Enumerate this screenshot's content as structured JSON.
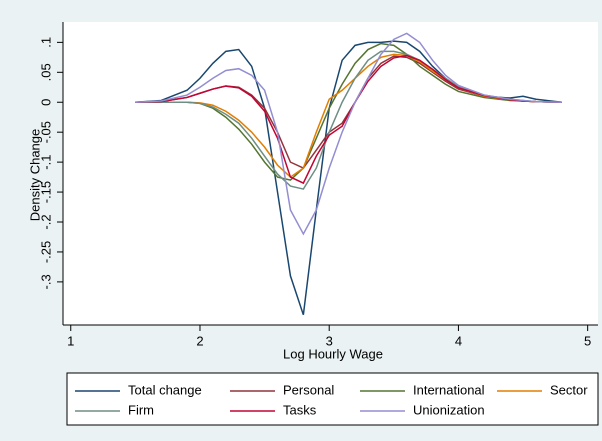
{
  "chart_data": {
    "type": "line",
    "x_label": "Log Hourly Wage",
    "y_label": "Density Change",
    "x": [
      1.5,
      1.7,
      1.9,
      2.0,
      2.1,
      2.2,
      2.3,
      2.4,
      2.5,
      2.6,
      2.7,
      2.8,
      2.9,
      3.0,
      3.1,
      3.2,
      3.3,
      3.4,
      3.5,
      3.6,
      3.7,
      3.8,
      3.9,
      4.0,
      4.2,
      4.4,
      4.5,
      4.6,
      4.8
    ],
    "series": [
      {
        "name": "Total change",
        "color": "#1a476f",
        "values": [
          0,
          0.003,
          0.02,
          0.04,
          0.065,
          0.085,
          0.088,
          0.06,
          -0.01,
          -0.15,
          -0.29,
          -0.355,
          -0.18,
          -0.01,
          0.07,
          0.095,
          0.1,
          0.1,
          0.102,
          0.1,
          0.085,
          0.06,
          0.04,
          0.025,
          0.01,
          0.007,
          0.01,
          0.005,
          0
        ]
      },
      {
        "name": "Personal",
        "color": "#90353b",
        "values": [
          0,
          0.001,
          0.008,
          0.015,
          0.022,
          0.027,
          0.025,
          0.012,
          -0.01,
          -0.05,
          -0.1,
          -0.11,
          -0.08,
          -0.05,
          -0.035,
          0,
          0.04,
          0.065,
          0.077,
          0.075,
          0.065,
          0.05,
          0.035,
          0.022,
          0.01,
          0.004,
          0.002,
          0.001,
          0
        ]
      },
      {
        "name": "International",
        "color": "#55752f",
        "values": [
          0,
          0,
          0,
          -0.002,
          -0.01,
          -0.025,
          -0.045,
          -0.07,
          -0.1,
          -0.125,
          -0.13,
          -0.11,
          -0.06,
          -0.01,
          0.03,
          0.065,
          0.088,
          0.098,
          0.095,
          0.08,
          0.06,
          0.045,
          0.03,
          0.018,
          0.008,
          0.003,
          0.002,
          0.001,
          0
        ]
      },
      {
        "name": "Sector",
        "color": "#e37e00",
        "values": [
          0,
          0,
          0,
          -0.001,
          -0.005,
          -0.015,
          -0.03,
          -0.05,
          -0.075,
          -0.105,
          -0.125,
          -0.11,
          -0.05,
          0.005,
          0.02,
          0.04,
          0.06,
          0.075,
          0.08,
          0.078,
          0.068,
          0.052,
          0.038,
          0.024,
          0.01,
          0.004,
          0.002,
          0.001,
          0
        ]
      },
      {
        "name": "Firm",
        "color": "#6e8e84",
        "values": [
          0,
          0,
          0,
          -0.002,
          -0.008,
          -0.02,
          -0.035,
          -0.06,
          -0.09,
          -0.12,
          -0.14,
          -0.145,
          -0.11,
          -0.05,
          0,
          0.04,
          0.07,
          0.085,
          0.085,
          0.08,
          0.07,
          0.055,
          0.04,
          0.026,
          0.012,
          0.005,
          0.003,
          0.001,
          0
        ]
      },
      {
        "name": "Tasks",
        "color": "#c10534",
        "values": [
          0,
          0.001,
          0.008,
          0.015,
          0.022,
          0.027,
          0.024,
          0.01,
          -0.015,
          -0.06,
          -0.125,
          -0.135,
          -0.09,
          -0.055,
          -0.04,
          0,
          0.035,
          0.06,
          0.074,
          0.078,
          0.07,
          0.055,
          0.038,
          0.024,
          0.011,
          0.004,
          0.002,
          0.001,
          0
        ]
      },
      {
        "name": "Unionization",
        "color": "#938dd2",
        "values": [
          0,
          0.002,
          0.012,
          0.025,
          0.04,
          0.053,
          0.056,
          0.045,
          0.02,
          -0.05,
          -0.18,
          -0.22,
          -0.18,
          -0.11,
          -0.05,
          0,
          0.04,
          0.08,
          0.105,
          0.115,
          0.1,
          0.07,
          0.045,
          0.028,
          0.012,
          0.005,
          0.003,
          0.001,
          0
        ]
      }
    ],
    "xlim": [
      0.94,
      5.08
    ],
    "xticks": [
      1,
      2,
      3,
      4,
      5
    ],
    "ylim": [
      -0.372,
      0.134
    ],
    "yticks": [
      {
        "value": -0.3,
        "label": "-.3"
      },
      {
        "value": -0.25,
        "label": "-.25"
      },
      {
        "value": -0.2,
        "label": "-.2"
      },
      {
        "value": -0.15,
        "label": "-.15"
      },
      {
        "value": -0.1,
        "label": "-.1"
      },
      {
        "value": -0.05,
        "label": "-.05"
      },
      0,
      {
        "value": 0.05,
        "label": ".05"
      },
      {
        "value": 0.1,
        "label": ".1"
      }
    ],
    "grid": false,
    "legend_position": "bottom"
  }
}
